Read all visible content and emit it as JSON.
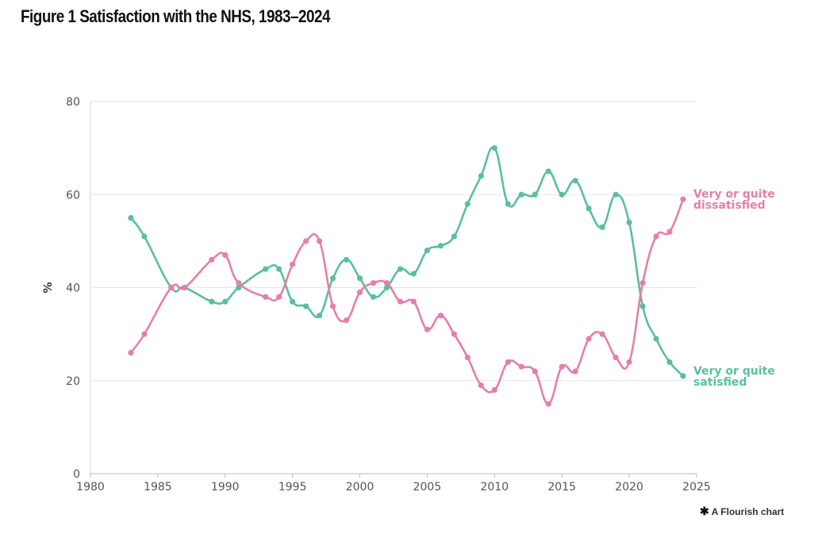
{
  "title": "Figure 1 Satisfaction with the NHS, 1983–2024",
  "credit": {
    "icon": "flourish-asterisk-icon",
    "text": "A Flourish chart"
  },
  "chart_data": {
    "type": "line",
    "title": "Figure 1 Satisfaction with the NHS, 1983–2024",
    "xlabel": "",
    "ylabel": "%",
    "xlim": [
      1980,
      2025
    ],
    "ylim": [
      0,
      80
    ],
    "x_ticks": [
      1980,
      1985,
      1990,
      1995,
      2000,
      2005,
      2010,
      2015,
      2020,
      2025
    ],
    "y_ticks": [
      0,
      20,
      40,
      60,
      80
    ],
    "grid": "horizontal",
    "legend": "labels at line ends (right)",
    "series": [
      {
        "name": "Very or quite satisfied",
        "label_lines": [
          "Very or quite",
          "satisfied"
        ],
        "color": "#5bbf9b",
        "points": [
          [
            1983,
            55
          ],
          [
            1984,
            51
          ],
          [
            1986,
            40
          ],
          [
            1987,
            40
          ],
          [
            1989,
            37
          ],
          [
            1990,
            37
          ],
          [
            1991,
            40
          ],
          [
            1993,
            44
          ],
          [
            1994,
            44
          ],
          [
            1995,
            37
          ],
          [
            1996,
            36
          ],
          [
            1997,
            34
          ],
          [
            1998,
            42
          ],
          [
            1999,
            46
          ],
          [
            2000,
            42
          ],
          [
            2001,
            38
          ],
          [
            2002,
            40
          ],
          [
            2003,
            44
          ],
          [
            2004,
            43
          ],
          [
            2005,
            48
          ],
          [
            2006,
            49
          ],
          [
            2007,
            51
          ],
          [
            2008,
            58
          ],
          [
            2009,
            64
          ],
          [
            2010,
            70
          ],
          [
            2011,
            58
          ],
          [
            2012,
            60
          ],
          [
            2013,
            60
          ],
          [
            2014,
            65
          ],
          [
            2015,
            60
          ],
          [
            2016,
            63
          ],
          [
            2017,
            57
          ],
          [
            2018,
            53
          ],
          [
            2019,
            60
          ],
          [
            2020,
            54
          ],
          [
            2021,
            36
          ],
          [
            2022,
            29
          ],
          [
            2023,
            24
          ],
          [
            2024,
            21
          ]
        ]
      },
      {
        "name": "Very or quite dissatisfied",
        "label_lines": [
          "Very or quite",
          "dissatisfied"
        ],
        "color": "#e47fab",
        "points": [
          [
            1983,
            26
          ],
          [
            1984,
            30
          ],
          [
            1986,
            40
          ],
          [
            1987,
            40
          ],
          [
            1989,
            46
          ],
          [
            1990,
            47
          ],
          [
            1991,
            41
          ],
          [
            1993,
            38
          ],
          [
            1994,
            38
          ],
          [
            1995,
            45
          ],
          [
            1996,
            50
          ],
          [
            1997,
            50
          ],
          [
            1998,
            36
          ],
          [
            1999,
            33
          ],
          [
            2000,
            39
          ],
          [
            2001,
            41
          ],
          [
            2002,
            41
          ],
          [
            2003,
            37
          ],
          [
            2004,
            37
          ],
          [
            2005,
            31
          ],
          [
            2006,
            34
          ],
          [
            2007,
            30
          ],
          [
            2008,
            25
          ],
          [
            2009,
            19
          ],
          [
            2010,
            18
          ],
          [
            2011,
            24
          ],
          [
            2012,
            23
          ],
          [
            2013,
            22
          ],
          [
            2014,
            15
          ],
          [
            2015,
            23
          ],
          [
            2016,
            22
          ],
          [
            2017,
            29
          ],
          [
            2018,
            30
          ],
          [
            2019,
            25
          ],
          [
            2020,
            24
          ],
          [
            2021,
            41
          ],
          [
            2022,
            51
          ],
          [
            2023,
            52
          ],
          [
            2024,
            59
          ]
        ]
      }
    ]
  }
}
